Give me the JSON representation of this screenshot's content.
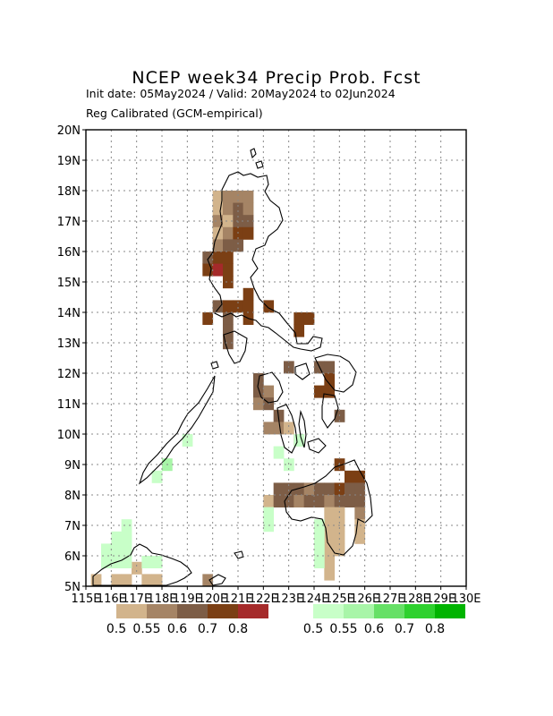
{
  "header": {
    "title": "NCEP week34 Precip Prob. Fcst",
    "line1": "Init date: 05May2024 / Valid: 20May2024 to 02Jun2024",
    "line2": "Reg Calibrated (GCM-empirical)"
  },
  "axes": {
    "lat_labels": [
      "5N",
      "6N",
      "7N",
      "8N",
      "9N",
      "10N",
      "11N",
      "12N",
      "13N",
      "14N",
      "15N",
      "16N",
      "17N",
      "18N",
      "19N",
      "20N"
    ],
    "lon_labels": [
      "115E",
      "116E",
      "117E",
      "118E",
      "119E",
      "120E",
      "121E",
      "122E",
      "123E",
      "124E",
      "125E",
      "126E",
      "127E",
      "128E",
      "129E",
      "130E"
    ],
    "lat_range": [
      5,
      20
    ],
    "lon_range": [
      115,
      130
    ],
    "grid": true
  },
  "legend": {
    "dry": {
      "colors": [
        "#d2b48c",
        "#a58465",
        "#7d5d46",
        "#7b3f14",
        "#a52a2a"
      ],
      "labels": [
        "0.5",
        "0.55",
        "0.6",
        "0.7",
        "0.8"
      ]
    },
    "wet": {
      "colors": [
        "#c8ffc8",
        "#a8f5a8",
        "#66e066",
        "#2ed12e",
        "#00b400"
      ],
      "labels": [
        "0.5",
        "0.55",
        "0.6",
        "0.7",
        "0.8"
      ]
    }
  },
  "chart_data": {
    "type": "heatmap",
    "title": "NCEP week34 Precip Prob. Fcst",
    "grid_step_deg": 0.4,
    "cells": [
      {
        "lon": 120.2,
        "lat": 17.8,
        "cat": "d1"
      },
      {
        "lon": 120.6,
        "lat": 17.8,
        "cat": "d2"
      },
      {
        "lon": 121.0,
        "lat": 17.8,
        "cat": "d2"
      },
      {
        "lon": 121.4,
        "lat": 17.8,
        "cat": "d2"
      },
      {
        "lon": 120.2,
        "lat": 17.4,
        "cat": "d1"
      },
      {
        "lon": 120.6,
        "lat": 17.4,
        "cat": "d2"
      },
      {
        "lon": 121.0,
        "lat": 17.4,
        "cat": "d3"
      },
      {
        "lon": 121.4,
        "lat": 17.4,
        "cat": "d2"
      },
      {
        "lon": 120.2,
        "lat": 17.0,
        "cat": "d2"
      },
      {
        "lon": 120.6,
        "lat": 17.0,
        "cat": "d1"
      },
      {
        "lon": 121.0,
        "lat": 17.0,
        "cat": "d3"
      },
      {
        "lon": 121.4,
        "lat": 17.0,
        "cat": "d3"
      },
      {
        "lon": 120.2,
        "lat": 16.6,
        "cat": "d1"
      },
      {
        "lon": 120.6,
        "lat": 16.6,
        "cat": "d2"
      },
      {
        "lon": 121.0,
        "lat": 16.6,
        "cat": "d4"
      },
      {
        "lon": 121.4,
        "lat": 16.6,
        "cat": "d4"
      },
      {
        "lon": 120.2,
        "lat": 16.2,
        "cat": "d2"
      },
      {
        "lon": 120.6,
        "lat": 16.2,
        "cat": "d3"
      },
      {
        "lon": 121.0,
        "lat": 16.2,
        "cat": "d3"
      },
      {
        "lon": 119.8,
        "lat": 15.8,
        "cat": "d3"
      },
      {
        "lon": 120.2,
        "lat": 15.8,
        "cat": "d4"
      },
      {
        "lon": 120.6,
        "lat": 15.8,
        "cat": "d4"
      },
      {
        "lon": 119.8,
        "lat": 15.4,
        "cat": "d4"
      },
      {
        "lon": 120.2,
        "lat": 15.4,
        "cat": "d5"
      },
      {
        "lon": 120.6,
        "lat": 15.4,
        "cat": "d4"
      },
      {
        "lon": 120.6,
        "lat": 15.0,
        "cat": "d4"
      },
      {
        "lon": 121.4,
        "lat": 14.6,
        "cat": "d4"
      },
      {
        "lon": 120.2,
        "lat": 14.2,
        "cat": "d3"
      },
      {
        "lon": 120.6,
        "lat": 14.2,
        "cat": "d4"
      },
      {
        "lon": 121.0,
        "lat": 14.2,
        "cat": "d4"
      },
      {
        "lon": 121.4,
        "lat": 14.2,
        "cat": "d4"
      },
      {
        "lon": 122.2,
        "lat": 14.2,
        "cat": "d4"
      },
      {
        "lon": 119.8,
        "lat": 13.8,
        "cat": "d4"
      },
      {
        "lon": 120.6,
        "lat": 13.8,
        "cat": "d3"
      },
      {
        "lon": 121.4,
        "lat": 13.8,
        "cat": "d4"
      },
      {
        "lon": 123.4,
        "lat": 13.8,
        "cat": "d4"
      },
      {
        "lon": 123.8,
        "lat": 13.8,
        "cat": "d4"
      },
      {
        "lon": 120.6,
        "lat": 13.4,
        "cat": "d3"
      },
      {
        "lon": 123.4,
        "lat": 13.4,
        "cat": "d4"
      },
      {
        "lon": 120.6,
        "lat": 13.0,
        "cat": "d3"
      },
      {
        "lon": 123.0,
        "lat": 12.2,
        "cat": "d3"
      },
      {
        "lon": 124.2,
        "lat": 12.2,
        "cat": "d3"
      },
      {
        "lon": 124.6,
        "lat": 12.2,
        "cat": "d3"
      },
      {
        "lon": 121.8,
        "lat": 11.8,
        "cat": "d3"
      },
      {
        "lon": 124.6,
        "lat": 11.8,
        "cat": "d4"
      },
      {
        "lon": 121.8,
        "lat": 11.4,
        "cat": "d3"
      },
      {
        "lon": 122.2,
        "lat": 11.4,
        "cat": "d2"
      },
      {
        "lon": 124.2,
        "lat": 11.4,
        "cat": "d4"
      },
      {
        "lon": 124.6,
        "lat": 11.4,
        "cat": "d4"
      },
      {
        "lon": 121.8,
        "lat": 11.0,
        "cat": "d2"
      },
      {
        "lon": 122.2,
        "lat": 11.0,
        "cat": "d3"
      },
      {
        "lon": 125.0,
        "lat": 10.6,
        "cat": "d3"
      },
      {
        "lon": 122.6,
        "lat": 10.6,
        "cat": "d3"
      },
      {
        "lon": 122.2,
        "lat": 10.2,
        "cat": "d2"
      },
      {
        "lon": 122.6,
        "lat": 10.2,
        "cat": "d2"
      },
      {
        "lon": 123.0,
        "lat": 10.2,
        "cat": "d1"
      },
      {
        "lon": 123.4,
        "lat": 9.8,
        "cat": "d3"
      },
      {
        "lon": 125.0,
        "lat": 9.0,
        "cat": "d4"
      },
      {
        "lon": 125.4,
        "lat": 8.6,
        "cat": "d4"
      },
      {
        "lon": 125.8,
        "lat": 8.6,
        "cat": "d4"
      },
      {
        "lon": 122.6,
        "lat": 8.2,
        "cat": "d3"
      },
      {
        "lon": 123.0,
        "lat": 8.2,
        "cat": "d3"
      },
      {
        "lon": 123.4,
        "lat": 8.2,
        "cat": "d3"
      },
      {
        "lon": 123.8,
        "lat": 8.2,
        "cat": "d2"
      },
      {
        "lon": 124.2,
        "lat": 8.2,
        "cat": "d3"
      },
      {
        "lon": 124.6,
        "lat": 8.2,
        "cat": "d3"
      },
      {
        "lon": 125.0,
        "lat": 8.2,
        "cat": "d4"
      },
      {
        "lon": 125.4,
        "lat": 8.2,
        "cat": "d3"
      },
      {
        "lon": 125.8,
        "lat": 8.2,
        "cat": "d3"
      },
      {
        "lon": 122.2,
        "lat": 7.8,
        "cat": "d1"
      },
      {
        "lon": 122.6,
        "lat": 7.8,
        "cat": "d3"
      },
      {
        "lon": 123.0,
        "lat": 7.8,
        "cat": "d3"
      },
      {
        "lon": 123.4,
        "lat": 7.8,
        "cat": "d2"
      },
      {
        "lon": 123.8,
        "lat": 7.8,
        "cat": "d3"
      },
      {
        "lon": 124.2,
        "lat": 7.8,
        "cat": "d3"
      },
      {
        "lon": 124.6,
        "lat": 7.8,
        "cat": "d2"
      },
      {
        "lon": 125.0,
        "lat": 7.8,
        "cat": "d3"
      },
      {
        "lon": 125.4,
        "lat": 7.8,
        "cat": "d3"
      },
      {
        "lon": 125.8,
        "lat": 7.8,
        "cat": "d3"
      },
      {
        "lon": 124.6,
        "lat": 7.4,
        "cat": "d1"
      },
      {
        "lon": 125.0,
        "lat": 7.4,
        "cat": "d1"
      },
      {
        "lon": 125.8,
        "lat": 7.4,
        "cat": "d2"
      },
      {
        "lon": 124.6,
        "lat": 7.0,
        "cat": "d1"
      },
      {
        "lon": 125.0,
        "lat": 7.0,
        "cat": "d1"
      },
      {
        "lon": 125.8,
        "lat": 7.0,
        "cat": "d1"
      },
      {
        "lon": 124.6,
        "lat": 6.6,
        "cat": "d1"
      },
      {
        "lon": 125.0,
        "lat": 6.6,
        "cat": "d1"
      },
      {
        "lon": 125.8,
        "lat": 6.6,
        "cat": "d1"
      },
      {
        "lon": 124.6,
        "lat": 6.2,
        "cat": "d1"
      },
      {
        "lon": 125.0,
        "lat": 6.2,
        "cat": "d1"
      },
      {
        "lon": 124.6,
        "lat": 5.8,
        "cat": "d1"
      },
      {
        "lon": 124.6,
        "lat": 5.4,
        "cat": "d1"
      },
      {
        "lon": 119.8,
        "lat": 5.2,
        "cat": "d2"
      },
      {
        "lon": 117.0,
        "lat": 5.6,
        "cat": "d1"
      },
      {
        "lon": 115.4,
        "lat": 5.2,
        "cat": "d1"
      },
      {
        "lon": 116.2,
        "lat": 5.2,
        "cat": "d1"
      },
      {
        "lon": 116.6,
        "lat": 5.2,
        "cat": "d1"
      },
      {
        "lon": 117.4,
        "lat": 5.2,
        "cat": "d1"
      },
      {
        "lon": 117.8,
        "lat": 5.2,
        "cat": "d1"
      },
      {
        "lon": 116.2,
        "lat": 6.6,
        "cat": "w1"
      },
      {
        "lon": 116.6,
        "lat": 6.6,
        "cat": "w1"
      },
      {
        "lon": 116.6,
        "lat": 7.0,
        "cat": "w1"
      },
      {
        "lon": 116.6,
        "lat": 6.2,
        "cat": "w1"
      },
      {
        "lon": 116.2,
        "lat": 6.2,
        "cat": "w1"
      },
      {
        "lon": 115.8,
        "lat": 6.2,
        "cat": "w1"
      },
      {
        "lon": 116.6,
        "lat": 5.8,
        "cat": "w1"
      },
      {
        "lon": 116.2,
        "lat": 5.8,
        "cat": "w1"
      },
      {
        "lon": 117.4,
        "lat": 5.8,
        "cat": "w1"
      },
      {
        "lon": 117.8,
        "lat": 5.8,
        "cat": "w1"
      },
      {
        "lon": 115.8,
        "lat": 5.8,
        "cat": "w1"
      },
      {
        "lon": 117.8,
        "lat": 8.6,
        "cat": "w1"
      },
      {
        "lon": 118.2,
        "lat": 9.0,
        "cat": "w2"
      },
      {
        "lon": 119.0,
        "lat": 9.8,
        "cat": "w1"
      },
      {
        "lon": 122.6,
        "lat": 9.4,
        "cat": "w1"
      },
      {
        "lon": 123.0,
        "lat": 9.0,
        "cat": "w1"
      },
      {
        "lon": 123.4,
        "lat": 9.8,
        "cat": "w1"
      },
      {
        "lon": 122.2,
        "lat": 7.4,
        "cat": "w1"
      },
      {
        "lon": 122.2,
        "lat": 7.0,
        "cat": "w1"
      },
      {
        "lon": 124.2,
        "lat": 7.0,
        "cat": "w1"
      },
      {
        "lon": 124.2,
        "lat": 6.6,
        "cat": "w1"
      },
      {
        "lon": 124.2,
        "lat": 6.2,
        "cat": "w1"
      },
      {
        "lon": 124.2,
        "lat": 5.8,
        "cat": "w1"
      }
    ]
  }
}
